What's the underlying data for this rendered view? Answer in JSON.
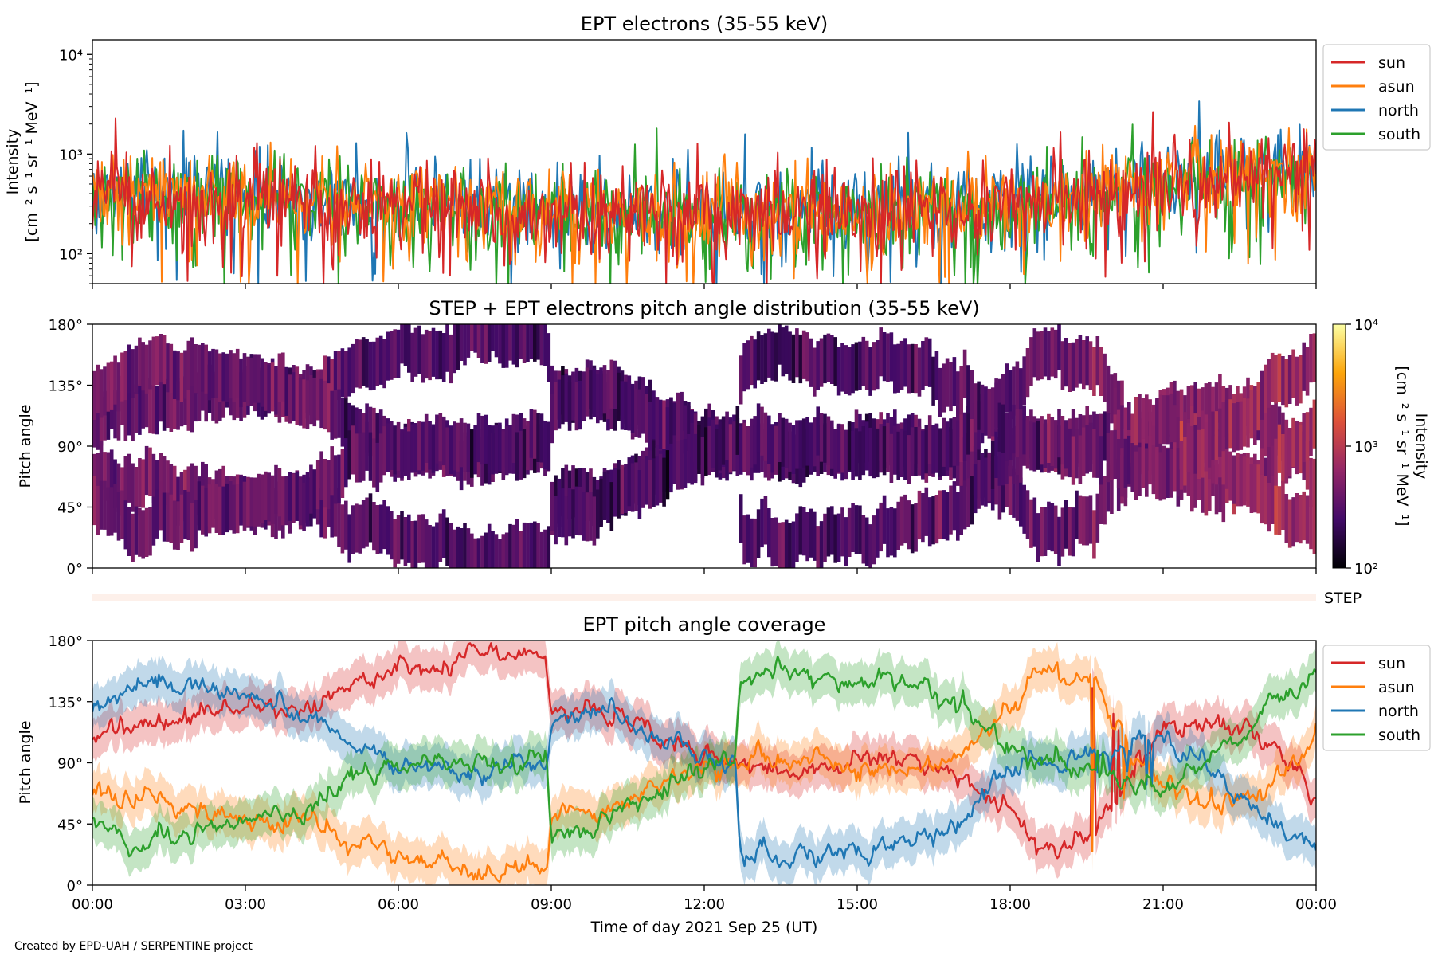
{
  "credit": "Created by EPD-UAH / SERPENTINE project",
  "chart_data": [
    {
      "type": "line",
      "title": "EPT electrons (35-55 keV)",
      "ylabel_line1": "Intensity",
      "ylabel_line2": "[cm⁻² s⁻¹ sr⁻¹ MeV⁻¹]",
      "yscale": "log",
      "ylim": [
        50,
        14000
      ],
      "yticks": [
        {
          "value": 100,
          "label": "10²"
        },
        {
          "value": 1000,
          "label": "10³"
        },
        {
          "value": 10000,
          "label": "10⁴"
        }
      ],
      "x_hours": [
        0,
        3,
        6,
        9,
        12,
        15,
        18,
        21,
        24
      ],
      "legend_position": "right, outside top",
      "colors": {
        "sun": "#d62728",
        "asun": "#ff7f0e",
        "north": "#1f77b4",
        "south": "#2ca02c"
      },
      "series": [
        {
          "name": "sun",
          "key": "sun",
          "profile": [
            [
              0,
              380
            ],
            [
              3,
              360
            ],
            [
              6,
              300
            ],
            [
              9,
              270
            ],
            [
              12,
              250
            ],
            [
              15,
              270
            ],
            [
              18,
              310
            ],
            [
              21,
              480
            ],
            [
              24,
              700
            ]
          ]
        },
        {
          "name": "asun",
          "key": "asun",
          "profile": [
            [
              0,
              420
            ],
            [
              3,
              380
            ],
            [
              6,
              310
            ],
            [
              9,
              280
            ],
            [
              12,
              260
            ],
            [
              15,
              280
            ],
            [
              18,
              330
            ],
            [
              21,
              500
            ],
            [
              24,
              720
            ]
          ]
        },
        {
          "name": "north",
          "key": "north",
          "profile": [
            [
              0,
              430
            ],
            [
              3,
              380
            ],
            [
              6,
              320
            ],
            [
              9,
              290
            ],
            [
              12,
              270
            ],
            [
              15,
              290
            ],
            [
              18,
              340
            ],
            [
              21,
              520
            ],
            [
              24,
              760
            ]
          ]
        },
        {
          "name": "south",
          "key": "south",
          "profile": [
            [
              0,
              400
            ],
            [
              3,
              370
            ],
            [
              6,
              300
            ],
            [
              9,
              270
            ],
            [
              12,
              250
            ],
            [
              15,
              270
            ],
            [
              18,
              320
            ],
            [
              21,
              500
            ],
            [
              24,
              720
            ]
          ]
        }
      ]
    },
    {
      "type": "heatmap",
      "title": "STEP + EPT electrons pitch angle distribution (35-55 keV)",
      "ylabel": "Pitch angle",
      "ylim": [
        0,
        180
      ],
      "yticks": [
        {
          "value": 0,
          "label": "0°"
        },
        {
          "value": 45,
          "label": "45°"
        },
        {
          "value": 90,
          "label": "90°"
        },
        {
          "value": 135,
          "label": "135°"
        },
        {
          "value": 180,
          "label": "180°"
        }
      ],
      "colorbar": {
        "label_line1": "Intensity",
        "label_line2": "[cm⁻² s⁻¹ sr⁻¹ MeV⁻¹]",
        "scale": "log",
        "range": [
          100,
          10000
        ],
        "ticks": [
          {
            "value": 100,
            "label": "10²"
          },
          {
            "value": 1000,
            "label": "10³"
          },
          {
            "value": 10000,
            "label": "10⁴"
          }
        ],
        "colormap": "inferno"
      },
      "description_of_data": "Each time column fills the pitch-angle spans covered by the four EPT telescopes (the shaded bands of the coverage panel); color is the intensity in that telescope."
    },
    {
      "type": "strip",
      "label": "STEP",
      "color": "#fdf0ea"
    },
    {
      "type": "line",
      "title": "EPT pitch angle coverage",
      "ylabel": "Pitch angle",
      "xlabel": "Time of day 2021 Sep 25 (UT)",
      "ylim": [
        0,
        180
      ],
      "yticks": [
        {
          "value": 0,
          "label": "0°"
        },
        {
          "value": 45,
          "label": "45°"
        },
        {
          "value": 90,
          "label": "90°"
        },
        {
          "value": 135,
          "label": "135°"
        },
        {
          "value": 180,
          "label": "180°"
        }
      ],
      "xticks": [
        {
          "value": 0,
          "label": "00:00"
        },
        {
          "value": 3,
          "label": "03:00"
        },
        {
          "value": 6,
          "label": "06:00"
        },
        {
          "value": 9,
          "label": "09:00"
        },
        {
          "value": 12,
          "label": "12:00"
        },
        {
          "value": 15,
          "label": "15:00"
        },
        {
          "value": 18,
          "label": "18:00"
        },
        {
          "value": 21,
          "label": "21:00"
        },
        {
          "value": 24,
          "label": "00:00"
        }
      ],
      "legend_position": "right, outside top",
      "band_halfwidth_deg": 15,
      "colors": {
        "sun": "#d62728",
        "asun": "#ff7f0e",
        "north": "#1f77b4",
        "south": "#2ca02c"
      },
      "series": [
        {
          "name": "sun",
          "key": "sun",
          "points": [
            [
              0,
              110
            ],
            [
              0.8,
              115
            ],
            [
              1.8,
              125
            ],
            [
              3,
              130
            ],
            [
              4,
              128
            ],
            [
              5,
              145
            ],
            [
              6,
              158
            ],
            [
              7.3,
              162
            ],
            [
              7.4,
              172
            ],
            [
              8.9,
              168
            ],
            [
              9,
              130
            ],
            [
              10,
              125
            ],
            [
              11,
              110
            ],
            [
              12,
              95
            ],
            [
              13,
              88
            ],
            [
              14,
              88
            ],
            [
              15,
              92
            ],
            [
              16,
              95
            ],
            [
              17,
              80
            ],
            [
              18,
              55
            ],
            [
              18.6,
              25
            ],
            [
              19.5,
              35
            ],
            [
              20,
              55
            ],
            [
              20.5,
              85
            ],
            [
              21,
              110
            ],
            [
              22,
              120
            ],
            [
              23,
              110
            ],
            [
              24,
              70
            ]
          ]
        },
        {
          "name": "asun",
          "key": "asun",
          "points": [
            [
              0,
              70
            ],
            [
              0.8,
              65
            ],
            [
              1.8,
              55
            ],
            [
              3,
              50
            ],
            [
              4,
              48
            ],
            [
              5,
              35
            ],
            [
              6,
              22
            ],
            [
              7.3,
              18
            ],
            [
              7.4,
              8
            ],
            [
              8.9,
              12
            ],
            [
              9,
              50
            ],
            [
              10,
              55
            ],
            [
              11,
              70
            ],
            [
              12,
              85
            ],
            [
              13,
              92
            ],
            [
              14,
              92
            ],
            [
              15,
              88
            ],
            [
              16,
              85
            ],
            [
              17,
              100
            ],
            [
              18,
              125
            ],
            [
              18.6,
              160
            ],
            [
              19.5,
              150
            ],
            [
              20,
              125
            ],
            [
              20.5,
              95
            ],
            [
              21,
              70
            ],
            [
              22,
              60
            ],
            [
              23,
              70
            ],
            [
              24,
              110
            ]
          ]
        },
        {
          "name": "north",
          "key": "north",
          "points": [
            [
              0,
              130
            ],
            [
              0.8,
              150
            ],
            [
              1.8,
              150
            ],
            [
              3,
              135
            ],
            [
              4,
              130
            ],
            [
              5,
              105
            ],
            [
              6,
              90
            ],
            [
              7.3,
              85
            ],
            [
              8.9,
              88
            ],
            [
              9,
              120
            ],
            [
              10,
              130
            ],
            [
              11,
              105
            ],
            [
              12,
              95
            ],
            [
              12.6,
              88
            ],
            [
              12.7,
              28
            ],
            [
              13,
              25
            ],
            [
              14,
              24
            ],
            [
              15,
              28
            ],
            [
              16,
              30
            ],
            [
              17,
              50
            ],
            [
              18,
              85
            ],
            [
              19,
              95
            ],
            [
              20,
              100
            ],
            [
              21,
              110
            ],
            [
              22,
              85
            ],
            [
              23,
              50
            ],
            [
              24,
              25
            ]
          ]
        },
        {
          "name": "south",
          "key": "south",
          "points": [
            [
              0,
              50
            ],
            [
              0.8,
              30
            ],
            [
              1.8,
              35
            ],
            [
              3,
              45
            ],
            [
              4,
              50
            ],
            [
              5,
              75
            ],
            [
              6,
              90
            ],
            [
              7.3,
              95
            ],
            [
              8.9,
              92
            ],
            [
              9,
              40
            ],
            [
              10,
              45
            ],
            [
              11,
              70
            ],
            [
              12,
              85
            ],
            [
              12.6,
              92
            ],
            [
              12.7,
              150
            ],
            [
              13,
              155
            ],
            [
              14,
              158
            ],
            [
              15,
              152
            ],
            [
              16,
              148
            ],
            [
              17,
              130
            ],
            [
              18,
              95
            ],
            [
              19,
              90
            ],
            [
              20,
              80
            ],
            [
              21,
              70
            ],
            [
              22,
              95
            ],
            [
              23,
              130
            ],
            [
              24,
              155
            ]
          ]
        }
      ]
    }
  ]
}
